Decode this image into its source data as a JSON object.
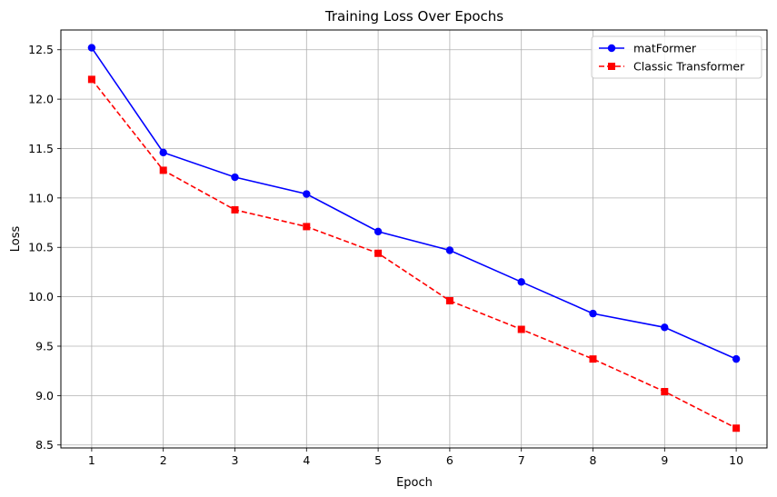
{
  "chart_data": {
    "type": "line",
    "title": "Training Loss Over Epochs",
    "xlabel": "Epoch",
    "ylabel": "Loss",
    "x": [
      1,
      2,
      3,
      4,
      5,
      6,
      7,
      8,
      9,
      10
    ],
    "xlim": [
      0.57,
      10.43
    ],
    "ylim": [
      8.47,
      12.7
    ],
    "yticks": [
      8.5,
      9.0,
      9.5,
      10.0,
      10.5,
      11.0,
      11.5,
      12.0,
      12.5
    ],
    "ytick_labels": [
      "8.5",
      "9.0",
      "9.5",
      "10.0",
      "10.5",
      "11.0",
      "11.5",
      "12.0",
      "12.5"
    ],
    "xtick_labels": [
      "1",
      "2",
      "3",
      "4",
      "5",
      "6",
      "7",
      "8",
      "9",
      "10"
    ],
    "grid": true,
    "legend_position": "top-right",
    "series": [
      {
        "name": "matFormer",
        "color": "#0000ff",
        "line_style": "solid",
        "marker": "circle",
        "values": [
          12.52,
          11.46,
          11.21,
          11.04,
          10.66,
          10.47,
          10.15,
          9.83,
          9.69,
          9.37
        ]
      },
      {
        "name": "Classic Transformer",
        "color": "#ff0000",
        "line_style": "dashed",
        "marker": "square",
        "values": [
          12.2,
          11.28,
          10.88,
          10.71,
          10.44,
          9.96,
          9.67,
          9.37,
          9.04,
          8.67
        ]
      }
    ]
  }
}
